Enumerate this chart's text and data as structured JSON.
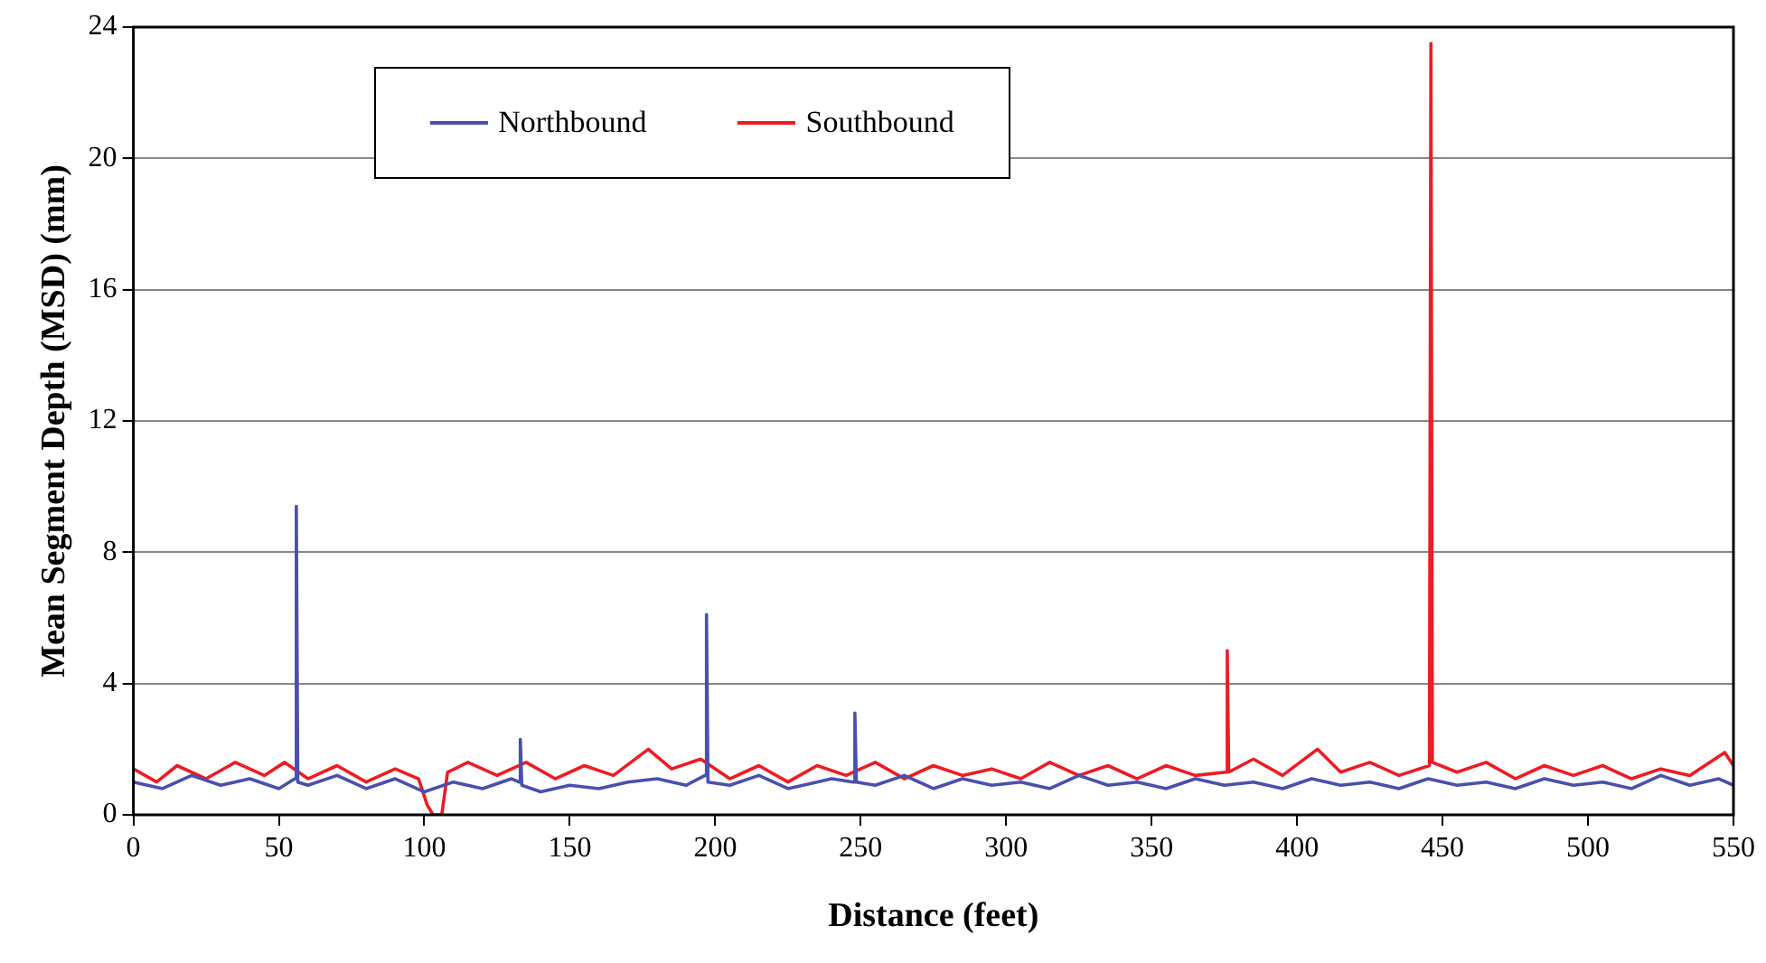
{
  "chart_data": {
    "type": "line",
    "xlabel": "Distance (feet)",
    "ylabel": "Mean Segment Depth (MSD) (mm)",
    "xlim": [
      0,
      550
    ],
    "xticks": [
      0,
      50,
      100,
      150,
      200,
      250,
      300,
      350,
      400,
      450,
      500,
      550
    ],
    "ylim": [
      0,
      24
    ],
    "yticks": [
      0,
      4,
      8,
      12,
      16,
      20,
      24
    ],
    "grid": "y",
    "legend": "top",
    "marker": "none",
    "line_style": "solid",
    "series": [
      {
        "name": "Northbound",
        "color": "#4a4fb0",
        "x": [
          0,
          10,
          20,
          30,
          40,
          50,
          55.5,
          56,
          56.5,
          60,
          70,
          80,
          90,
          100,
          110,
          120,
          130,
          132.5,
          133,
          133.5,
          140,
          150,
          160,
          170,
          180,
          190,
          196.5,
          197,
          197.5,
          205,
          215,
          225,
          235,
          240,
          247.5,
          248,
          248.5,
          255,
          265,
          275,
          285,
          295,
          305,
          315,
          325,
          335,
          345,
          355,
          365,
          375,
          385,
          395,
          405,
          415,
          425,
          435,
          445,
          455,
          465,
          475,
          485,
          495,
          505,
          515,
          525,
          535,
          545,
          550
        ],
        "values": [
          1.0,
          0.8,
          1.2,
          0.9,
          1.1,
          0.8,
          1.1,
          9.4,
          1.0,
          0.9,
          1.2,
          0.8,
          1.1,
          0.7,
          1.0,
          0.8,
          1.1,
          1.0,
          2.3,
          0.9,
          0.7,
          0.9,
          0.8,
          1.0,
          1.1,
          0.9,
          1.2,
          6.1,
          1.0,
          0.9,
          1.2,
          0.8,
          1.0,
          1.1,
          1.0,
          3.1,
          1.0,
          0.9,
          1.2,
          0.8,
          1.1,
          0.9,
          1.0,
          0.8,
          1.2,
          0.9,
          1.0,
          0.8,
          1.1,
          0.9,
          1.0,
          0.8,
          1.1,
          0.9,
          1.0,
          0.8,
          1.1,
          0.9,
          1.0,
          0.8,
          1.1,
          0.9,
          1.0,
          0.8,
          1.2,
          0.9,
          1.1,
          0.9
        ]
      },
      {
        "name": "Southbound",
        "color": "#ee1c25",
        "x": [
          0,
          8,
          15,
          25,
          35,
          45,
          52,
          60,
          70,
          80,
          90,
          98,
          101,
          103,
          106,
          108,
          115,
          125,
          135,
          145,
          155,
          165,
          177,
          185,
          195,
          205,
          215,
          225,
          235,
          245,
          255,
          265,
          275,
          285,
          295,
          305,
          315,
          325,
          335,
          345,
          355,
          365,
          375.5,
          376,
          376.5,
          385,
          395,
          407,
          415,
          425,
          435,
          445.5,
          446,
          446.5,
          455,
          465,
          475,
          485,
          495,
          505,
          515,
          525,
          535,
          547,
          550
        ],
        "values": [
          1.4,
          1.0,
          1.5,
          1.1,
          1.6,
          1.2,
          1.6,
          1.1,
          1.5,
          1.0,
          1.4,
          1.1,
          0.3,
          0,
          0,
          1.3,
          1.6,
          1.2,
          1.6,
          1.1,
          1.5,
          1.2,
          2.0,
          1.4,
          1.7,
          1.1,
          1.5,
          1.0,
          1.5,
          1.2,
          1.6,
          1.1,
          1.5,
          1.2,
          1.4,
          1.1,
          1.6,
          1.2,
          1.5,
          1.1,
          1.5,
          1.2,
          1.3,
          5.0,
          1.3,
          1.7,
          1.2,
          2.0,
          1.3,
          1.6,
          1.2,
          1.5,
          23.5,
          1.6,
          1.3,
          1.6,
          1.1,
          1.5,
          1.2,
          1.5,
          1.1,
          1.4,
          1.2,
          1.9,
          1.5
        ]
      }
    ]
  }
}
